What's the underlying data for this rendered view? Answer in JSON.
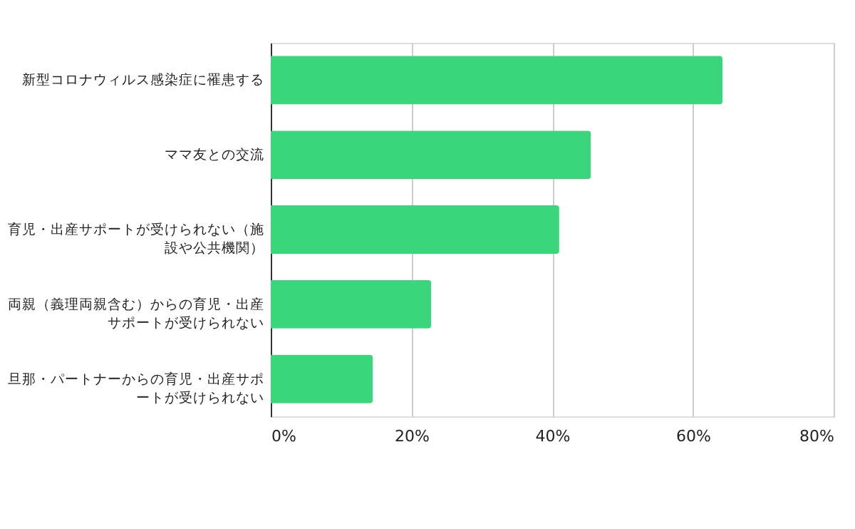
{
  "chart_data": {
    "type": "bar",
    "orientation": "horizontal",
    "categories": [
      "新型コロナウィルス感染症に罹患する",
      "ママ友との交流",
      "育児・出産サポートが受けられない（施設や公共機関）",
      "両親（義理両親含む）からの育児・出産サポートが受けられない",
      "旦那・パートナーからの育児・出産サポートが受けられない"
    ],
    "values": [
      64.2,
      45.5,
      41.0,
      22.8,
      14.5
    ],
    "color": "#3ad67c",
    "xlim": [
      0,
      80
    ],
    "xticks": [
      {
        "value": 0,
        "label": "0%"
      },
      {
        "value": 20,
        "label": "20%"
      },
      {
        "value": 40,
        "label": "40%"
      },
      {
        "value": 60,
        "label": "60%"
      },
      {
        "value": 80,
        "label": "80%"
      }
    ],
    "grid": "x"
  }
}
